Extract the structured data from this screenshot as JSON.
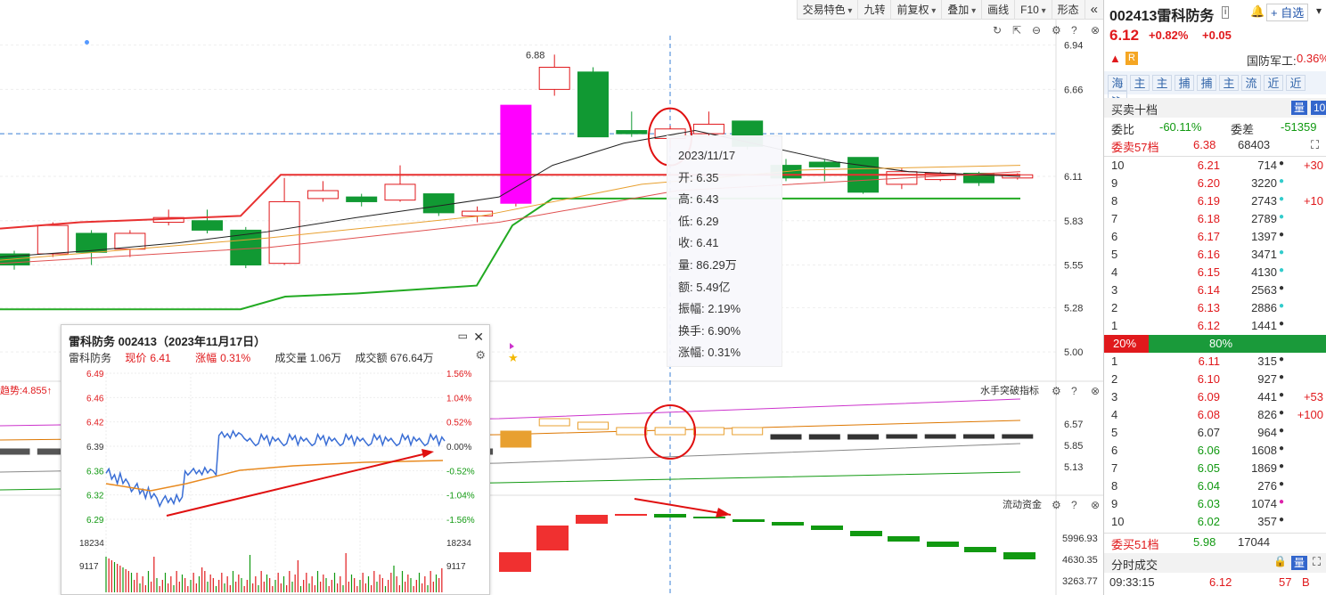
{
  "toolbar": {
    "items": [
      "交易特色",
      "九转",
      "前复权",
      "叠加",
      "画线",
      "F10",
      "形态"
    ],
    "collapse": "«"
  },
  "chart_icons": [
    "refresh-icon",
    "expand-icon",
    "minus-icon",
    "gear-icon",
    "help-icon",
    "close-icon"
  ],
  "price_axis": [
    "6.94",
    "6.66",
    "6.38",
    "6.11",
    "5.83",
    "5.55",
    "5.28",
    "5.00"
  ],
  "high_label": "6.88",
  "ind1": {
    "name": "水手突破指标",
    "axis": [
      "6.57",
      "5.85",
      "5.13"
    ],
    "left_label": "趋势:4.855"
  },
  "ind2": {
    "name": "流动资金",
    "axis": [
      "5996.93",
      "4630.35",
      "3263.77"
    ]
  },
  "tooltip": {
    "date": "2023/11/17",
    "rows": [
      {
        "k": "开:",
        "v": "6.35"
      },
      {
        "k": "高:",
        "v": "6.43"
      },
      {
        "k": "低:",
        "v": "6.29"
      },
      {
        "k": "收:",
        "v": "6.41"
      },
      {
        "k": "量:",
        "v": "86.29万"
      },
      {
        "k": "额:",
        "v": "5.49亿"
      },
      {
        "k": "振幅:",
        "v": "2.19%"
      },
      {
        "k": "换手:",
        "v": "6.90%"
      },
      {
        "k": "涨幅:",
        "v": "0.31%"
      }
    ]
  },
  "mini": {
    "title": "雷科防务 002413（2023年11月17日）",
    "name": "雷科防务",
    "price_label": "现价",
    "price": "6.41",
    "chg_label": "涨幅",
    "chg": "0.31%",
    "vol": "成交量 1.06万",
    "amt": "成交额 676.64万",
    "left_axis": [
      "6.49",
      "6.46",
      "6.42",
      "6.39",
      "6.36",
      "6.32",
      "6.29"
    ],
    "right_axis": [
      "1.56%",
      "1.04%",
      "0.52%",
      "0.00%",
      "-0.52%",
      "-1.04%",
      "-1.56%"
    ],
    "vol_axis": [
      "18234",
      "9117"
    ]
  },
  "quote": {
    "code_name": "002413雷科防务",
    "info": "i",
    "price": "6.12",
    "pct": "+0.82%",
    "chg": "+0.05",
    "sector": "国防军工:",
    "sector_pct": "0.36%",
    "add": "+ 自选",
    "tag": "R",
    "quick": [
      "海",
      "主",
      "主",
      "捕",
      "捕",
      "主",
      "流",
      "近",
      "近",
      "≫"
    ]
  },
  "book": {
    "title": "买卖十档",
    "tab1": "量",
    "tab2": "10",
    "wb_label": "委比",
    "wb": "-60.11%",
    "wc_label": "委差",
    "wc": "-51359",
    "sell_label": "委卖57档",
    "sell_p": "6.38",
    "sell_v": "68403",
    "buy_label": "委买51档",
    "buy_p": "5.98",
    "buy_v": "17044",
    "bar_l": "20%",
    "bar_r": "80%",
    "asks": [
      {
        "n": "10",
        "p": "6.21",
        "v": "714",
        "d": "#333",
        "c": "+30"
      },
      {
        "n": "9",
        "p": "6.20",
        "v": "3220",
        "d": "#33cccc",
        "c": ""
      },
      {
        "n": "8",
        "p": "6.19",
        "v": "2743",
        "d": "#33cccc",
        "c": "+10"
      },
      {
        "n": "7",
        "p": "6.18",
        "v": "2789",
        "d": "#33cccc",
        "c": ""
      },
      {
        "n": "6",
        "p": "6.17",
        "v": "1397",
        "d": "#333",
        "c": ""
      },
      {
        "n": "5",
        "p": "6.16",
        "v": "3471",
        "d": "#33cccc",
        "c": ""
      },
      {
        "n": "4",
        "p": "6.15",
        "v": "4130",
        "d": "#33cccc",
        "c": ""
      },
      {
        "n": "3",
        "p": "6.14",
        "v": "2563",
        "d": "#333",
        "c": ""
      },
      {
        "n": "2",
        "p": "6.13",
        "v": "2886",
        "d": "#33cccc",
        "c": ""
      },
      {
        "n": "1",
        "p": "6.12",
        "v": "1441",
        "d": "#333",
        "c": ""
      }
    ],
    "bids": [
      {
        "n": "1",
        "p": "6.11",
        "v": "315",
        "d": "#333",
        "c": "",
        "pc": "up"
      },
      {
        "n": "2",
        "p": "6.10",
        "v": "927",
        "d": "#333",
        "c": "",
        "pc": "up"
      },
      {
        "n": "3",
        "p": "6.09",
        "v": "441",
        "d": "#333",
        "c": "+53",
        "pc": "up"
      },
      {
        "n": "4",
        "p": "6.08",
        "v": "826",
        "d": "#333",
        "c": "+100",
        "pc": "up"
      },
      {
        "n": "5",
        "p": "6.07",
        "v": "964",
        "d": "#333",
        "c": "",
        "pc": "blk"
      },
      {
        "n": "6",
        "p": "6.06",
        "v": "1608",
        "d": "#333",
        "c": "",
        "pc": "dn"
      },
      {
        "n": "7",
        "p": "6.05",
        "v": "1869",
        "d": "#333",
        "c": "",
        "pc": "dn"
      },
      {
        "n": "8",
        "p": "6.04",
        "v": "276",
        "d": "#333",
        "c": "",
        "pc": "dn"
      },
      {
        "n": "9",
        "p": "6.03",
        "v": "1074",
        "d": "#dd22aa",
        "c": "",
        "pc": "dn"
      },
      {
        "n": "10",
        "p": "6.02",
        "v": "357",
        "d": "#333",
        "c": "",
        "pc": "dn"
      }
    ]
  },
  "trades": {
    "title": "分时成交",
    "time": "09:33:15",
    "price": "6.12",
    "vol": "57",
    "side": "B"
  },
  "chart_data": {
    "type": "candlestick",
    "candles": [
      {
        "o": 5.62,
        "c": 5.55,
        "h": 5.64,
        "l": 5.52
      },
      {
        "o": 5.62,
        "c": 5.8,
        "h": 5.82,
        "l": 5.6
      },
      {
        "o": 5.75,
        "c": 5.63,
        "h": 5.77,
        "l": 5.55
      },
      {
        "o": 5.65,
        "c": 5.75,
        "h": 5.77,
        "l": 5.6
      },
      {
        "o": 5.82,
        "c": 5.85,
        "h": 5.9,
        "l": 5.8
      },
      {
        "o": 5.83,
        "c": 5.77,
        "h": 5.9,
        "l": 5.75
      },
      {
        "o": 5.77,
        "c": 5.55,
        "h": 5.79,
        "l": 5.53
      },
      {
        "o": 5.56,
        "c": 5.95,
        "h": 6.1,
        "l": 5.55
      },
      {
        "o": 5.97,
        "c": 6.02,
        "h": 6.08,
        "l": 5.95
      },
      {
        "o": 5.98,
        "c": 5.95,
        "h": 6.0,
        "l": 5.92
      },
      {
        "o": 5.96,
        "c": 6.06,
        "h": 6.18,
        "l": 5.95
      },
      {
        "o": 6.0,
        "c": 5.88,
        "h": 6.0,
        "l": 5.86
      },
      {
        "o": 5.86,
        "c": 5.89,
        "h": 5.92,
        "l": 5.82
      },
      {
        "o": 5.94,
        "c": 6.56,
        "h": 6.56,
        "l": 5.92
      },
      {
        "o": 6.66,
        "c": 6.8,
        "h": 6.88,
        "l": 6.62
      },
      {
        "o": 6.77,
        "c": 6.36,
        "h": 6.8,
        "l": 6.36
      },
      {
        "o": 6.4,
        "c": 6.38,
        "h": 6.52,
        "l": 6.36
      },
      {
        "o": 6.35,
        "c": 6.41,
        "h": 6.43,
        "l": 6.29
      },
      {
        "o": 6.38,
        "c": 6.44,
        "h": 6.52,
        "l": 6.36
      },
      {
        "o": 6.46,
        "c": 6.3,
        "h": 6.46,
        "l": 6.28
      },
      {
        "o": 6.18,
        "c": 6.1,
        "h": 6.22,
        "l": 6.08
      },
      {
        "o": 6.2,
        "c": 6.17,
        "h": 6.22,
        "l": 6.08
      },
      {
        "o": 6.23,
        "c": 6.01,
        "h": 6.23,
        "l": 6.0
      },
      {
        "o": 6.06,
        "c": 6.14,
        "h": 6.16,
        "l": 6.03
      },
      {
        "o": 6.09,
        "c": 6.13,
        "h": 6.14,
        "l": 6.08
      },
      {
        "o": 6.13,
        "c": 6.07,
        "h": 6.14,
        "l": 6.05
      },
      {
        "o": 6.1,
        "c": 6.12,
        "h": 6.13,
        "l": 6.09
      }
    ],
    "ylim": [
      4.86,
      7.0
    ]
  }
}
